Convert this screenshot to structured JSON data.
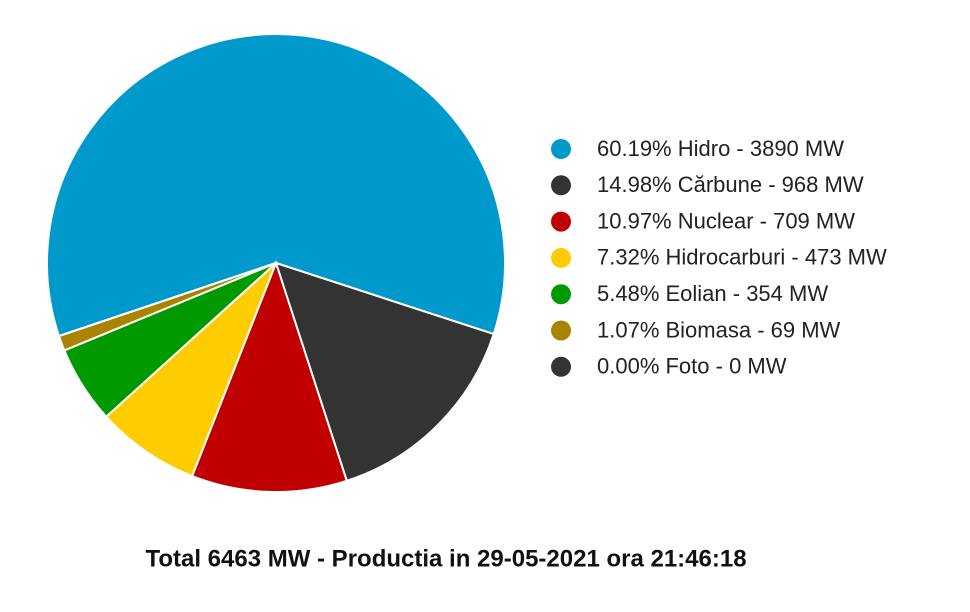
{
  "chart_data": {
    "type": "pie",
    "title": "Total 6463 MW - Productia in 29-05-2021 ora 21:46:18",
    "categories": [
      "60.19% Hidro - 3890 MW",
      "14.98% Cărbune - 968 MW",
      "10.97% Nuclear - 709 MW",
      "7.32% Hidrocarburi - 473 MW",
      "5.48% Eolian - 354 MW",
      "1.07% Biomasa - 69 MW",
      "0.00% Foto - 0 MW"
    ],
    "values": [
      3890,
      968,
      709,
      473,
      354,
      69,
      0
    ],
    "colors": [
      "#0099cc",
      "#333333",
      "#c00000",
      "#ffcc00",
      "#009900",
      "#a88400",
      "#333333"
    ]
  }
}
